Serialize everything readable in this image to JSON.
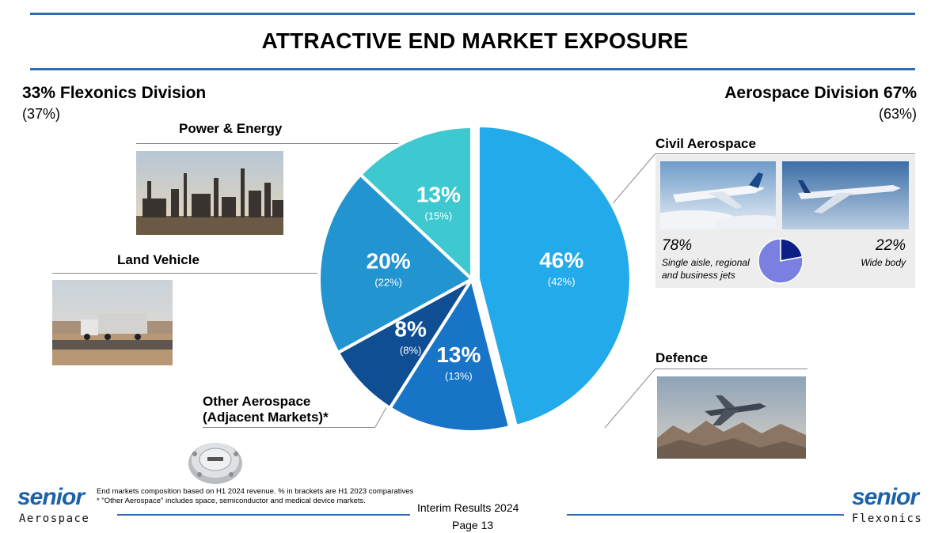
{
  "title": "ATTRACTIVE END MARKET EXPOSURE",
  "left_division": {
    "label": "33% Flexonics Division",
    "prior": "(37%)"
  },
  "right_division": {
    "label": "Aerospace Division 67%",
    "prior": "(63%)"
  },
  "segments": {
    "power_energy": "Power & Energy",
    "land_vehicle": "Land Vehicle",
    "other_aero_line1": "Other Aerospace",
    "other_aero_line2": "(Adjacent Markets)*",
    "civil": "Civil Aerospace",
    "defence": "Defence"
  },
  "civil_split": {
    "narrow_pct": "78%",
    "narrow_line1": "Single aisle, regional",
    "narrow_line2": "and business jets",
    "wide_pct": "22%",
    "wide_label": "Wide body"
  },
  "chart_data": [
    {
      "type": "pie",
      "slices": [
        {
          "label": "46%",
          "value": 46,
          "prior": "(42%)",
          "color": "#22aaea",
          "segment": "Civil Aerospace"
        },
        {
          "label": "13%",
          "value": 13,
          "prior": "(13%)",
          "color": "#1774c7",
          "segment": "Defence"
        },
        {
          "label": "8%",
          "value": 8,
          "prior": "(8%)",
          "color": "#0f4e93",
          "segment": "Other Aerospace (Adjacent Markets)*"
        },
        {
          "label": "20%",
          "value": 20,
          "prior": "(22%)",
          "color": "#2294cf",
          "segment": "Land Vehicle"
        },
        {
          "label": "13%",
          "value": 13,
          "prior": "(15%)",
          "color": "#3ec8d0",
          "segment": "Power & Energy"
        }
      ]
    },
    {
      "type": "pie",
      "slices": [
        {
          "label": "Wide body",
          "value": 22,
          "color": "#0b1f86"
        },
        {
          "label": "Single aisle, regional and business jets",
          "value": 78,
          "color": "#7b7fe0"
        }
      ]
    }
  ],
  "footnote": {
    "line1": "End markets composition based on H1 2024 revenue. % in brackets are H1 2023 comparatives",
    "line2": "* \"Other Aerospace\" includes space, semiconductor and medical device markets."
  },
  "footer": {
    "report": "Interim Results 2024",
    "page": "Page 13"
  },
  "logos": {
    "left_word": "senior",
    "left_sub": "Aerospace",
    "right_word": "senior",
    "right_sub": "Flexonics"
  }
}
